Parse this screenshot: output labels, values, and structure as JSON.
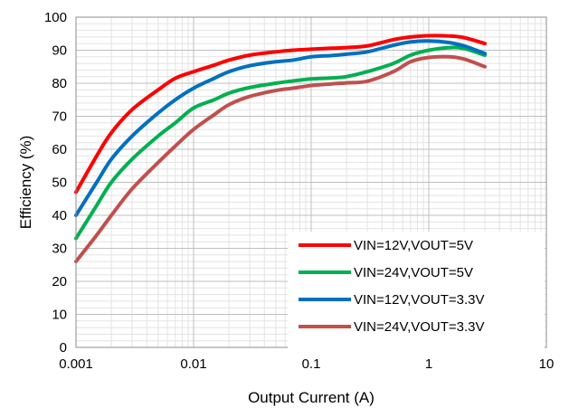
{
  "chart_data": {
    "type": "line",
    "title": "",
    "xlabel": "Output Current (A)",
    "ylabel": "Efficiency (%)",
    "x_scale": "log",
    "xlim": [
      0.001,
      10
    ],
    "ylim": [
      0,
      100
    ],
    "x_ticks": [
      0.001,
      0.01,
      0.1,
      1,
      10
    ],
    "x_tick_labels": [
      "0.001",
      "0.01",
      "0.1",
      "1",
      "10"
    ],
    "y_ticks": [
      0,
      10,
      20,
      30,
      40,
      50,
      60,
      70,
      80,
      90,
      100
    ],
    "y_tick_labels": [
      "0",
      "10",
      "20",
      "30",
      "40",
      "50",
      "60",
      "70",
      "80",
      "90",
      "100"
    ],
    "grid": true,
    "legend_position": "bottom-right",
    "series": [
      {
        "name": "VIN=12V,VOUT=5V",
        "color": "#ff0000",
        "x": [
          0.001,
          0.0015,
          0.002,
          0.003,
          0.005,
          0.007,
          0.01,
          0.015,
          0.02,
          0.03,
          0.05,
          0.07,
          0.1,
          0.15,
          0.2,
          0.3,
          0.5,
          0.7,
          1,
          1.5,
          2,
          3
        ],
        "y": [
          47,
          58,
          65,
          72,
          78,
          81.5,
          83.5,
          85.5,
          87,
          88.5,
          89.5,
          90,
          90.3,
          90.6,
          90.8,
          91.3,
          93.2,
          94,
          94.4,
          94.3,
          93.8,
          92
        ]
      },
      {
        "name": "VIN=24V,VOUT=5V",
        "color": "#00b050",
        "x": [
          0.001,
          0.0015,
          0.002,
          0.003,
          0.005,
          0.007,
          0.01,
          0.015,
          0.02,
          0.03,
          0.05,
          0.07,
          0.1,
          0.15,
          0.2,
          0.3,
          0.5,
          0.7,
          1,
          1.5,
          2,
          3
        ],
        "y": [
          33,
          43,
          50,
          57,
          64,
          68,
          72.5,
          75,
          77,
          78.7,
          80,
          80.7,
          81.3,
          81.6,
          82,
          83.5,
          86,
          88.5,
          90,
          90.8,
          90.5,
          88.5
        ]
      },
      {
        "name": "VIN=12V,VOUT=3.3V",
        "color": "#0070c0",
        "x": [
          0.001,
          0.0015,
          0.002,
          0.003,
          0.005,
          0.007,
          0.01,
          0.015,
          0.02,
          0.03,
          0.05,
          0.07,
          0.1,
          0.15,
          0.2,
          0.3,
          0.5,
          0.7,
          1,
          1.5,
          2,
          3
        ],
        "y": [
          40,
          50,
          57,
          64,
          71,
          75,
          78.5,
          81.5,
          83.5,
          85.3,
          86.5,
          87,
          88,
          88.4,
          88.8,
          89.5,
          91.5,
          92.5,
          92.8,
          92.3,
          91.3,
          89
        ]
      },
      {
        "name": "VIN=24V,VOUT=3.3V",
        "color": "#c0504d",
        "x": [
          0.001,
          0.0015,
          0.002,
          0.003,
          0.005,
          0.007,
          0.01,
          0.015,
          0.02,
          0.03,
          0.05,
          0.07,
          0.1,
          0.15,
          0.2,
          0.3,
          0.5,
          0.7,
          1,
          1.5,
          2,
          3
        ],
        "y": [
          26,
          34,
          40,
          48,
          56,
          61,
          66,
          70.5,
          73.5,
          76,
          77.8,
          78.5,
          79.3,
          79.8,
          80.1,
          80.6,
          83.5,
          86.5,
          87.8,
          88,
          87.3,
          85
        ]
      }
    ]
  }
}
